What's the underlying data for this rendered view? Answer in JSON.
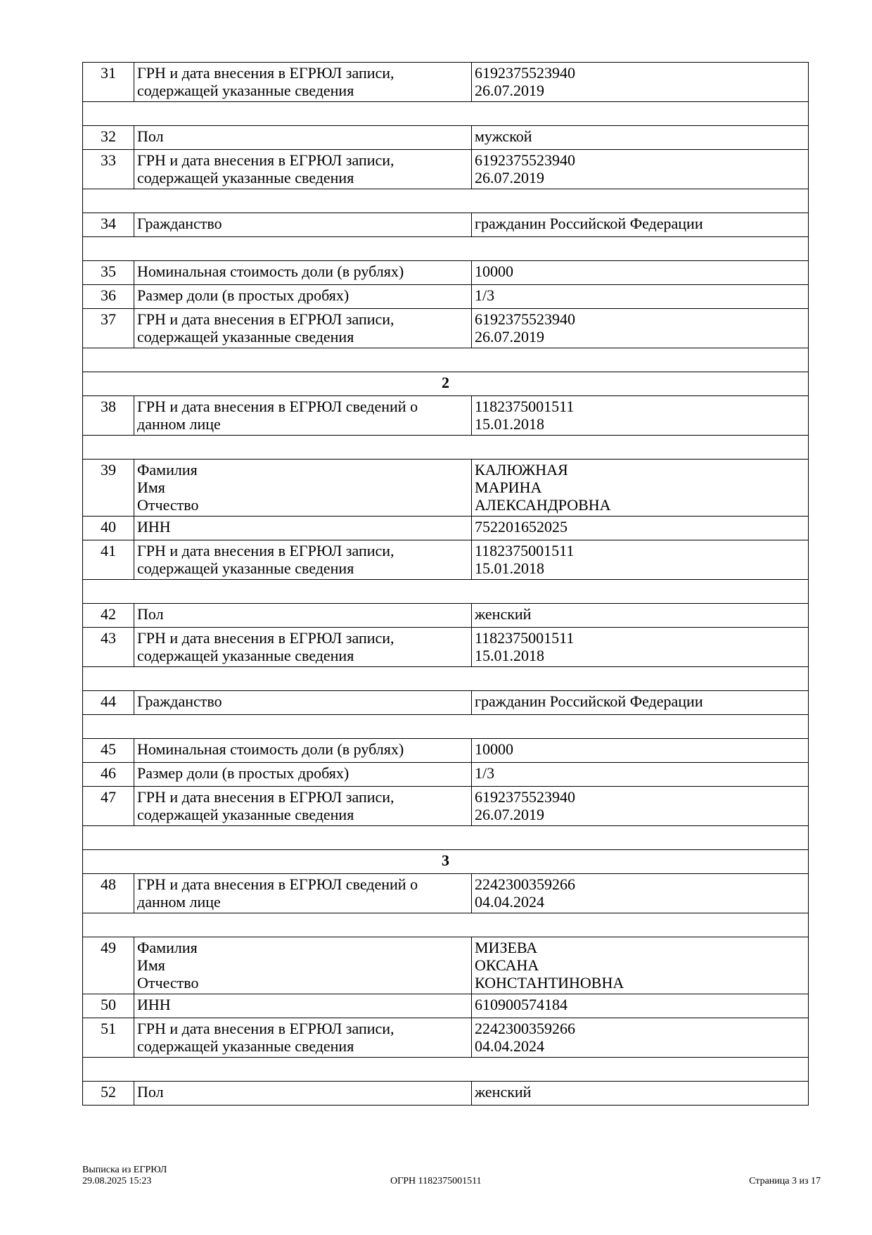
{
  "rows": [
    {
      "type": "row",
      "num": "31",
      "label": "ГРН и дата внесения в ЕГРЮЛ записи,\nсодержащей указанные сведения",
      "value": "6192375523940\n26.07.2019"
    },
    {
      "type": "empty"
    },
    {
      "type": "row",
      "num": "32",
      "label": "Пол",
      "value": "мужской"
    },
    {
      "type": "row",
      "num": "33",
      "label": "ГРН и дата внесения в ЕГРЮЛ записи,\nсодержащей указанные сведения",
      "value": "6192375523940\n26.07.2019"
    },
    {
      "type": "empty"
    },
    {
      "type": "row",
      "num": "34",
      "label": "Гражданство",
      "value": "гражданин Российской Федерации"
    },
    {
      "type": "empty"
    },
    {
      "type": "row",
      "num": "35",
      "label": "Номинальная стоимость доли (в рублях)",
      "value": "10000"
    },
    {
      "type": "row",
      "num": "36",
      "label": "Размер доли (в простых дробях)",
      "value": "1/3"
    },
    {
      "type": "row",
      "num": "37",
      "label": "ГРН и дата внесения в ЕГРЮЛ записи,\nсодержащей указанные сведения",
      "value": "6192375523940\n26.07.2019"
    },
    {
      "type": "empty"
    },
    {
      "type": "section",
      "title": "2"
    },
    {
      "type": "row",
      "num": "38",
      "label": "ГРН и дата внесения в ЕГРЮЛ сведений о\nданном лице",
      "value": "1182375001511\n15.01.2018"
    },
    {
      "type": "empty"
    },
    {
      "type": "row",
      "num": "39",
      "label": "Фамилия\nИмя\nОтчество",
      "value": "КАЛЮЖНАЯ\nМАРИНА\nАЛЕКСАНДРОВНА"
    },
    {
      "type": "row",
      "num": "40",
      "label": "ИНН",
      "value": "752201652025"
    },
    {
      "type": "row",
      "num": "41",
      "label": "ГРН и дата внесения в ЕГРЮЛ записи,\nсодержащей указанные сведения",
      "value": "1182375001511\n15.01.2018"
    },
    {
      "type": "empty"
    },
    {
      "type": "row",
      "num": "42",
      "label": "Пол",
      "value": "женский"
    },
    {
      "type": "row",
      "num": "43",
      "label": "ГРН и дата внесения в ЕГРЮЛ записи,\nсодержащей указанные сведения",
      "value": "1182375001511\n15.01.2018"
    },
    {
      "type": "empty"
    },
    {
      "type": "row",
      "num": "44",
      "label": "Гражданство",
      "value": "гражданин Российской Федерации"
    },
    {
      "type": "empty"
    },
    {
      "type": "row",
      "num": "45",
      "label": "Номинальная стоимость доли (в рублях)",
      "value": "10000"
    },
    {
      "type": "row",
      "num": "46",
      "label": "Размер доли (в простых дробях)",
      "value": "1/3"
    },
    {
      "type": "row",
      "num": "47",
      "label": "ГРН и дата внесения в ЕГРЮЛ записи,\nсодержащей указанные сведения",
      "value": "6192375523940\n26.07.2019"
    },
    {
      "type": "empty"
    },
    {
      "type": "section",
      "title": "3"
    },
    {
      "type": "row",
      "num": "48",
      "label": "ГРН и дата внесения в ЕГРЮЛ сведений о\nданном лице",
      "value": "2242300359266\n04.04.2024"
    },
    {
      "type": "empty"
    },
    {
      "type": "row",
      "num": "49",
      "label": "Фамилия\nИмя\nОтчество",
      "value": "МИЗЕВА\nОКСАНА\nКОНСТАНТИНОВНА"
    },
    {
      "type": "row",
      "num": "50",
      "label": "ИНН",
      "value": "610900574184"
    },
    {
      "type": "row",
      "num": "51",
      "label": "ГРН и дата внесения в ЕГРЮЛ записи,\nсодержащей указанные сведения",
      "value": "2242300359266\n04.04.2024"
    },
    {
      "type": "empty"
    },
    {
      "type": "row",
      "num": "52",
      "label": "Пол",
      "value": "женский"
    }
  ],
  "footer": {
    "doc_title": "Выписка из ЕГРЮЛ",
    "datetime": "29.08.2025 15:23",
    "ogrn": "ОГРН 1182375001511",
    "page": "Страница 3 из 17"
  }
}
